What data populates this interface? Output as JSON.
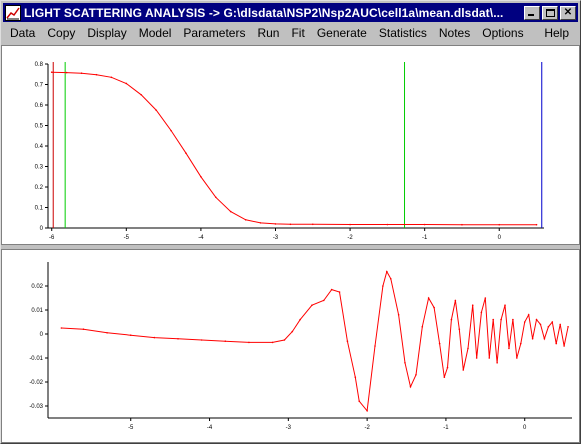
{
  "window": {
    "title": "LIGHT SCATTERING ANALYSIS -> G:\\dlsdata\\NSP2\\Nsp2AUC\\cell1a\\mean.dlsdat\\..."
  },
  "menu": [
    "Data",
    "Copy",
    "Display",
    "Model",
    "Parameters",
    "Run",
    "Fit",
    "Generate",
    "Statistics",
    "Notes",
    "Options"
  ],
  "menu_right": "Help",
  "colors": {
    "title_bg": "#000080",
    "curve": "#ff0000",
    "marker_red": "#cc0000",
    "marker_green": "#00cc00",
    "marker_blue": "#0000cc"
  },
  "chart_data": [
    {
      "type": "line",
      "name": "fit-plot",
      "xlim": [
        -6.05,
        0.6
      ],
      "ylim": [
        0,
        0.8
      ],
      "x_ticks": [
        -6,
        -5,
        -4,
        -3,
        -2,
        -1,
        0
      ],
      "x_tick_labels": [
        "-6",
        "-5",
        "-4",
        "-3",
        "-2",
        "-1",
        "0"
      ],
      "y_ticks": [
        0,
        0.1,
        0.2,
        0.3,
        0.4,
        0.5,
        0.6,
        0.7,
        0.8
      ],
      "y_tick_labels": [
        "0",
        "0.1",
        "0.2",
        "0.3",
        "0.4",
        "0.5",
        "0.6",
        "0.7",
        "0.8"
      ],
      "series": [
        {
          "x": [
            -6.0,
            -5.8,
            -5.6,
            -5.4,
            -5.2,
            -5.0,
            -4.8,
            -4.6,
            -4.4,
            -4.2,
            -4.0,
            -3.8,
            -3.6,
            -3.4,
            -3.2,
            -3.0,
            -2.8,
            -2.5,
            -2.0,
            -1.5,
            -1.0,
            -0.5,
            0.0,
            0.5
          ],
          "y": [
            0.76,
            0.758,
            0.755,
            0.748,
            0.735,
            0.705,
            0.65,
            0.575,
            0.475,
            0.365,
            0.25,
            0.15,
            0.08,
            0.04,
            0.025,
            0.02,
            0.018,
            0.018,
            0.017,
            0.017,
            0.017,
            0.016,
            0.016,
            0.016
          ]
        }
      ],
      "markers": [
        {
          "x": -5.98,
          "color": "#cc0000"
        },
        {
          "x": -5.82,
          "color": "#00cc00"
        },
        {
          "x": -1.27,
          "color": "#00cc00"
        },
        {
          "x": 0.57,
          "color": "#0000cc"
        }
      ]
    },
    {
      "type": "line",
      "name": "residual-plot",
      "xlim": [
        -6.05,
        0.6
      ],
      "ylim": [
        -0.035,
        0.03
      ],
      "x_ticks": [
        -5,
        -4,
        -3,
        -2,
        -1,
        0
      ],
      "x_tick_labels": [
        "-5",
        "-4",
        "-3",
        "-2",
        "-1",
        "0"
      ],
      "y_ticks": [
        -0.03,
        -0.02,
        -0.01,
        0,
        0.01,
        0.02
      ],
      "y_tick_labels": [
        "-0.03",
        "-0.02",
        "-0.01",
        "0",
        "0.01",
        "0.02"
      ],
      "series": [
        {
          "x": [
            -5.88,
            -5.6,
            -5.3,
            -5.0,
            -4.7,
            -4.4,
            -4.1,
            -3.8,
            -3.5,
            -3.2,
            -3.05,
            -2.95,
            -2.85,
            -2.7,
            -2.55,
            -2.45,
            -2.35,
            -2.25,
            -2.15,
            -2.1,
            -2.0,
            -1.9,
            -1.8,
            -1.75,
            -1.7,
            -1.6,
            -1.52,
            -1.45,
            -1.38,
            -1.3,
            -1.22,
            -1.15,
            -1.08,
            -1.02,
            -0.98,
            -0.93,
            -0.88,
            -0.83,
            -0.78,
            -0.72,
            -0.66,
            -0.61,
            -0.55,
            -0.5,
            -0.45,
            -0.4,
            -0.35,
            -0.3,
            -0.25,
            -0.2,
            -0.15,
            -0.1,
            -0.05,
            0.0,
            0.05,
            0.1,
            0.15,
            0.2,
            0.25,
            0.3,
            0.35,
            0.4,
            0.45,
            0.5,
            0.55
          ],
          "y": [
            0.0025,
            0.002,
            0.0005,
            -0.0005,
            -0.0015,
            -0.002,
            -0.0025,
            -0.003,
            -0.0035,
            -0.0035,
            -0.0025,
            0.001,
            0.006,
            0.012,
            0.014,
            0.0185,
            0.0175,
            -0.003,
            -0.018,
            -0.028,
            -0.032,
            -0.005,
            0.02,
            0.026,
            0.023,
            0.008,
            -0.012,
            -0.022,
            -0.017,
            0.003,
            0.015,
            0.011,
            -0.004,
            -0.018,
            -0.014,
            0.006,
            0.014,
            0.002,
            -0.015,
            -0.006,
            0.012,
            -0.01,
            0.009,
            0.015,
            -0.01,
            0.006,
            -0.012,
            0.006,
            0.012,
            -0.006,
            0.006,
            -0.01,
            -0.004,
            0.005,
            0.008,
            -0.002,
            0.006,
            0.004,
            -0.002,
            0.003,
            0.005,
            -0.004,
            0.004,
            -0.005,
            0.003
          ]
        }
      ]
    }
  ]
}
